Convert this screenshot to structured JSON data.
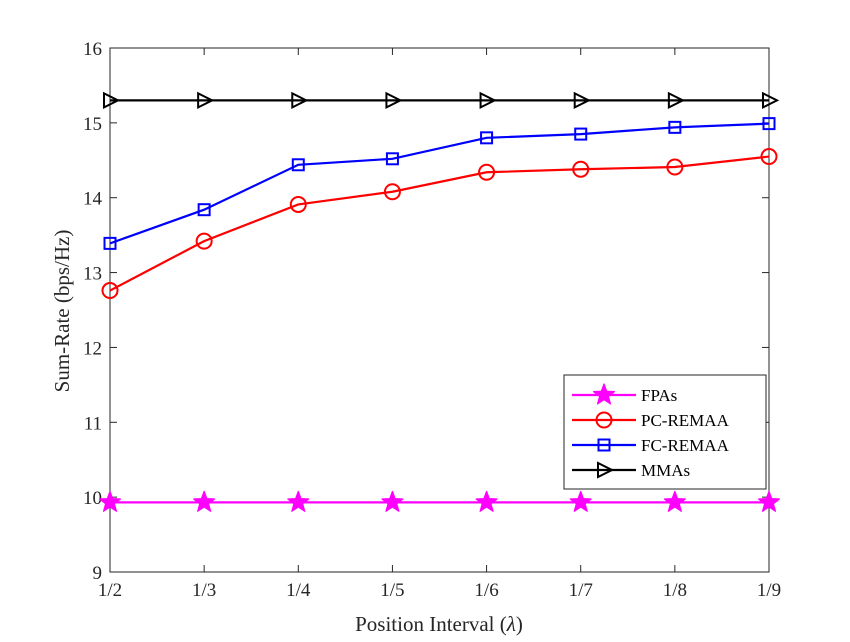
{
  "chart_data": {
    "type": "line",
    "title": "",
    "xlabel": "Position Interval (λ)",
    "ylabel": "Sum-Rate (bps/Hz)",
    "categories": [
      "1/2",
      "1/3",
      "1/4",
      "1/5",
      "1/6",
      "1/7",
      "1/8",
      "1/9"
    ],
    "ylim": [
      9,
      16
    ],
    "yticks": [
      9,
      10,
      11,
      12,
      13,
      14,
      15,
      16
    ],
    "grid": false,
    "legend_position": "bottom-right",
    "series": [
      {
        "name": "FPAs",
        "marker": "star",
        "color": "#ff00ff",
        "values": [
          9.93,
          9.93,
          9.93,
          9.93,
          9.93,
          9.93,
          9.93,
          9.93
        ]
      },
      {
        "name": "PC-REMAA",
        "marker": "circle",
        "color": "#ff0000",
        "values": [
          12.76,
          13.42,
          13.91,
          14.08,
          14.34,
          14.38,
          14.41,
          14.55
        ]
      },
      {
        "name": "FC-REMAA",
        "marker": "square",
        "color": "#0000ff",
        "values": [
          13.39,
          13.84,
          14.44,
          14.52,
          14.8,
          14.85,
          14.94,
          14.99
        ]
      },
      {
        "name": "MMAs",
        "marker": "triangle-right",
        "color": "#000000",
        "values": [
          15.3,
          15.3,
          15.3,
          15.3,
          15.3,
          15.3,
          15.3,
          15.3
        ]
      }
    ]
  }
}
